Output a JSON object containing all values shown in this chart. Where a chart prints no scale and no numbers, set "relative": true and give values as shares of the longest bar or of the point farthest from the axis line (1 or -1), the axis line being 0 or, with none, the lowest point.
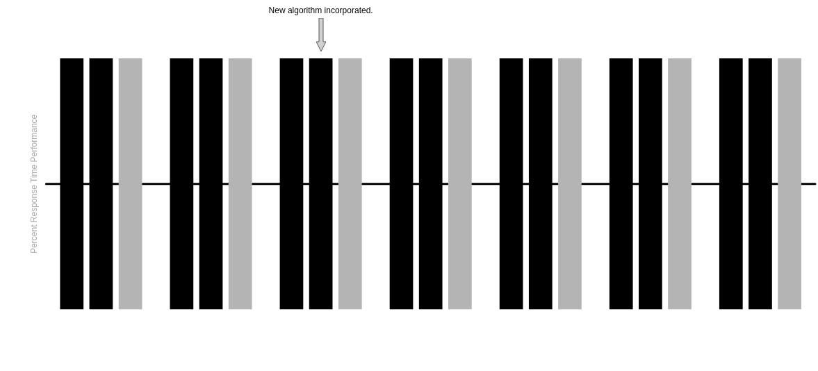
{
  "chart_data": {
    "type": "bar",
    "relative": true,
    "ylabel": "Percent Response Time Performance",
    "annotations": [
      "New algorithm incorporated."
    ],
    "categories": [
      null,
      null,
      null,
      null,
      null,
      null,
      null
    ],
    "series": [
      {
        "color": "#000000",
        "values": [
          1,
          1,
          1,
          1,
          1,
          1,
          1
        ]
      },
      {
        "color": "#000000",
        "values": [
          1,
          1,
          1,
          1,
          1,
          1,
          1
        ]
      },
      {
        "color": "#b4b4b4",
        "values": [
          1,
          1,
          1,
          1,
          1,
          1,
          1
        ]
      }
    ],
    "ref_lines": [
      {
        "axis": "y",
        "value": 0.5,
        "color": "#000000",
        "line_style": "solid"
      }
    ],
    "legend": false,
    "grid": false
  }
}
